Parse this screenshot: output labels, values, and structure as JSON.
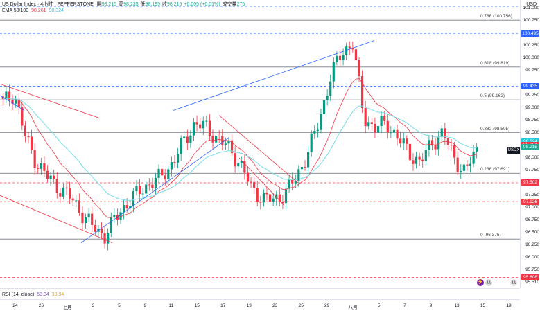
{
  "header": {
    "symbol_line": "US Dollar Index · 4小时 · PEPPERSTONE",
    "ohlc": [
      {
        "k": "開",
        "v": "98.215"
      },
      {
        "k": "高",
        "v": "98.235"
      },
      {
        "k": "低",
        "v": "98.195"
      },
      {
        "k": "收",
        "v": "98.215"
      },
      {
        "k": "",
        "v": "+0.005 (+0.01%)"
      },
      {
        "k": "成交量",
        "v": "275"
      }
    ],
    "ema_label": "EMA 50/100",
    "ema_val1": "98.261",
    "ema_val2": "98.324"
  },
  "currency": "USD",
  "symbol_badge": "USDX",
  "price_axis": [
    "101.000",
    "100.750",
    "100.495",
    "100.250",
    "100.000",
    "99.750",
    "99.435",
    "99.250",
    "99.000",
    "98.750",
    "98.500",
    "98.324",
    "98.215",
    "98.000",
    "97.750",
    "97.502",
    "97.250",
    "97.126",
    "97.000",
    "96.750",
    "96.500",
    "96.250",
    "96.000",
    "95.750",
    "95.608",
    "95.510"
  ],
  "badges": [
    {
      "price": "100.495",
      "color": "#2962ff"
    },
    {
      "price": "99.435",
      "color": "#2962ff"
    },
    {
      "price": "98.324",
      "color": "#26c6da"
    },
    {
      "price": "98.261",
      "color": "#f23645"
    },
    {
      "price": "98.215",
      "color": "#22ab94"
    },
    {
      "price": "97.502",
      "color": "#f23645"
    },
    {
      "price": "97.126",
      "color": "#f23645"
    },
    {
      "price": "95.608",
      "color": "#f23645"
    }
  ],
  "fib_levels": [
    {
      "label": "0.786 (100.756)",
      "price": 100.756
    },
    {
      "label": "0.618 (99.819)",
      "price": 99.819
    },
    {
      "label": "0.5 (99.162)",
      "price": 99.162
    },
    {
      "label": "0.382 (98.505)",
      "price": 98.505
    },
    {
      "label": "0.236 (97.691)",
      "price": 97.691
    },
    {
      "label": "0 (96.376)",
      "price": 96.376
    }
  ],
  "rsi": {
    "label": "RSI (14, close)",
    "v1": "53.34",
    "v2": "39.94"
  },
  "time_axis": [
    "24",
    "26",
    "七月",
    "3",
    "5",
    "9",
    "11",
    "15",
    "17",
    "19",
    "23",
    "25",
    "29",
    "八月",
    "5",
    "7",
    "9",
    "13",
    "15",
    "19"
  ],
  "chart_data": {
    "type": "candlestick",
    "title": "US Dollar Index · 4小时 · PEPPERSTONE",
    "y_ticks": [
      101.0,
      100.75,
      100.5,
      100.25,
      100.0,
      99.75,
      99.5,
      99.25,
      99.0,
      98.75,
      98.5,
      98.25,
      98.0,
      97.75,
      97.5,
      97.25,
      97.0,
      96.75,
      96.5,
      96.25,
      96.0,
      95.75,
      95.5
    ],
    "last_price": 98.215,
    "ema50_last": 98.261,
    "ema100_last": 98.324,
    "path": [
      99.1,
      99.3,
      98.4,
      97.9,
      97.6,
      97.4,
      97.2,
      96.9,
      96.6,
      96.45,
      96.8,
      97.1,
      97.3,
      97.5,
      97.6,
      97.9,
      98.3,
      98.7,
      98.6,
      98.4,
      98.2,
      97.9,
      97.4,
      97.2,
      97.15,
      97.3,
      97.6,
      98.1,
      98.7,
      99.6,
      100.1,
      100.3,
      98.8,
      98.6,
      98.7,
      98.4,
      98.1,
      97.9,
      98.3,
      98.5,
      98.0,
      97.7,
      98.215
    ]
  }
}
